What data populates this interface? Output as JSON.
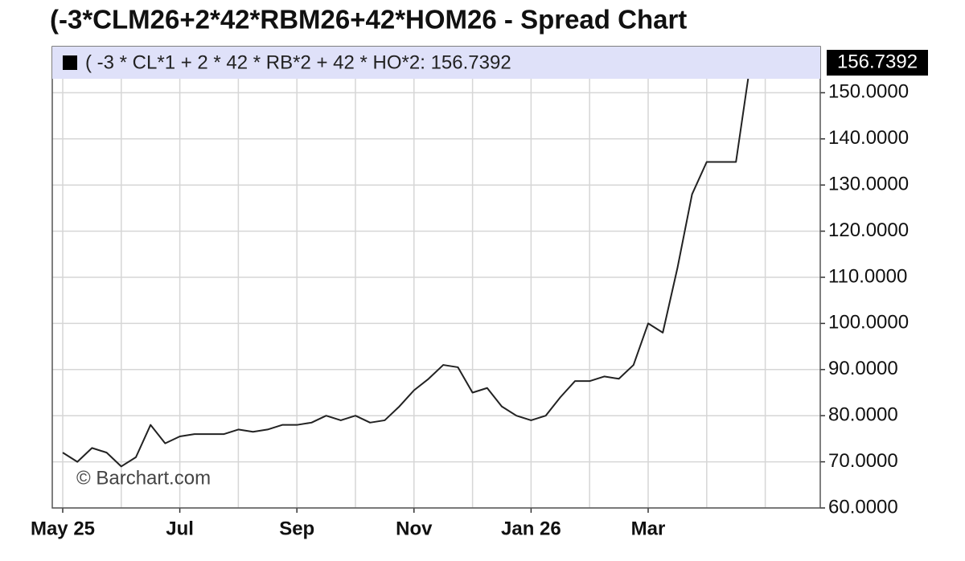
{
  "chart_data": {
    "type": "line",
    "title": "(-3*CLM26+2*42*RBM26+42*HOM26 - Spread Chart",
    "legend": "( -3 * CL*1 + 2 * 42 * RB*2 + 42 * HO*2: 156.7392",
    "last_label": "156.7392",
    "watermark": "© Barchart.com",
    "categories": [
      "May 25",
      null,
      null,
      null,
      null,
      null,
      null,
      null,
      "Jul",
      null,
      null,
      null,
      null,
      null,
      null,
      null,
      "Sep",
      null,
      null,
      null,
      null,
      null,
      null,
      null,
      "Nov",
      null,
      null,
      null,
      null,
      null,
      null,
      null,
      "Jan 26",
      null,
      null,
      null,
      null,
      null,
      null,
      null,
      "Mar",
      null,
      null,
      null,
      null,
      null,
      null,
      null
    ],
    "series": [
      {
        "name": "( -3 * CL*1 + 2 * 42 * RB*2 + 42 * HO*2",
        "color": "#222222",
        "values": [
          72,
          70,
          73,
          72,
          69,
          71,
          78,
          74,
          75.5,
          76,
          76,
          76,
          77,
          76.5,
          77,
          78,
          78,
          78.5,
          80,
          79,
          80,
          78.5,
          79,
          82,
          85.5,
          88,
          91,
          90.5,
          85,
          86,
          82,
          80,
          79,
          80,
          84,
          87.5,
          87.5,
          88.5,
          88,
          91,
          100,
          98,
          112,
          128,
          135,
          135,
          135,
          156.7392
        ]
      }
    ],
    "ylim": [
      60,
      160
    ],
    "yticks": [
      {
        "value": 60,
        "label": "60.0000"
      },
      {
        "value": 70,
        "label": "70.0000"
      },
      {
        "value": 80,
        "label": "80.0000"
      },
      {
        "value": 90,
        "label": "90.0000"
      },
      {
        "value": 100,
        "label": "100.0000"
      },
      {
        "value": 110,
        "label": "110.0000"
      },
      {
        "value": 120,
        "label": "120.0000"
      },
      {
        "value": 130,
        "label": "130.0000"
      },
      {
        "value": 140,
        "label": "140.0000"
      },
      {
        "value": 150,
        "label": "150.0000"
      }
    ],
    "grid": true
  }
}
